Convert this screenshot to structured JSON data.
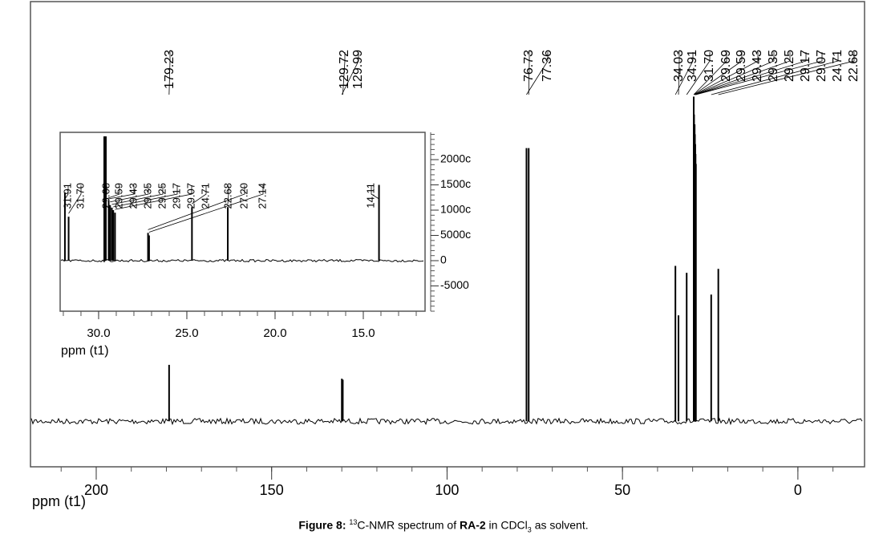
{
  "chart_data": [
    {
      "type": "spectrum",
      "xlabel": "ppm (t1)",
      "xlim": [
        218.74,
        -19
      ],
      "xticks": [
        200,
        150,
        100,
        50,
        0
      ],
      "ylim": [
        -4600,
        42400
      ],
      "color": "#000000",
      "x": [
        179.23,
        129.72,
        129.99,
        76.73,
        77.36,
        34.03,
        34.91,
        31.7,
        29.69,
        29.59,
        29.43,
        29.35,
        29.25,
        29.17,
        29.07,
        24.71,
        22.68
      ],
      "x_labels": [
        "179.23",
        "129.72",
        "129.99",
        "76.73",
        "77.36",
        "34.03",
        "34.91",
        "31.70",
        "29.69",
        "29.59",
        "29.43",
        "29.35",
        "29.25",
        "29.17",
        "29.07",
        "24.71",
        "22.68"
      ],
      "values": [
        5700,
        4200,
        4300,
        27600,
        27600,
        10700,
        15700,
        15000,
        32800,
        31000,
        30000,
        29000,
        28000,
        27000,
        26000,
        12800,
        15400
      ]
    },
    {
      "type": "spectrum",
      "xlabel": "ppm (t1)",
      "xlim": [
        32.18,
        11.5
      ],
      "xticks": [
        {
          "value": 30,
          "label": "30.0"
        },
        {
          "value": 25,
          "label": "25.0"
        },
        {
          "value": 20,
          "label": "20.0"
        },
        {
          "value": 15,
          "label": "15.0"
        }
      ],
      "ylim": [
        -10000,
        25400
      ],
      "yticks": [
        {
          "value": 20000,
          "label": "2000c"
        },
        {
          "value": 15000,
          "label": "1500c"
        },
        {
          "value": 10000,
          "label": "1000c"
        },
        {
          "value": 5000,
          "label": "5000c"
        },
        0,
        -5000
      ],
      "color": "#000000",
      "x": [
        31.91,
        31.7,
        29.68,
        29.59,
        29.43,
        29.35,
        29.25,
        29.17,
        29.07,
        24.71,
        22.68,
        27.2,
        27.14,
        14.11
      ],
      "x_labels": [
        "31.91",
        "31.70",
        "29.68",
        "29.59",
        "29.43",
        "29.35",
        "29.25",
        "29.17",
        "29.07",
        "24.71",
        "22.68",
        "27.20",
        "27.14",
        "14.11"
      ],
      "values": [
        13500,
        8700,
        24600,
        24600,
        12000,
        11000,
        10500,
        10000,
        9500,
        10600,
        10600,
        5500,
        5000,
        15000
      ]
    }
  ],
  "caption": {
    "label": "Figure 8:",
    "sup": "13",
    "text1": "C-NMR spectrum of",
    "compound": "RA-2",
    "text2": "in CDCl",
    "sub": "3",
    "text3": "as solvent."
  }
}
